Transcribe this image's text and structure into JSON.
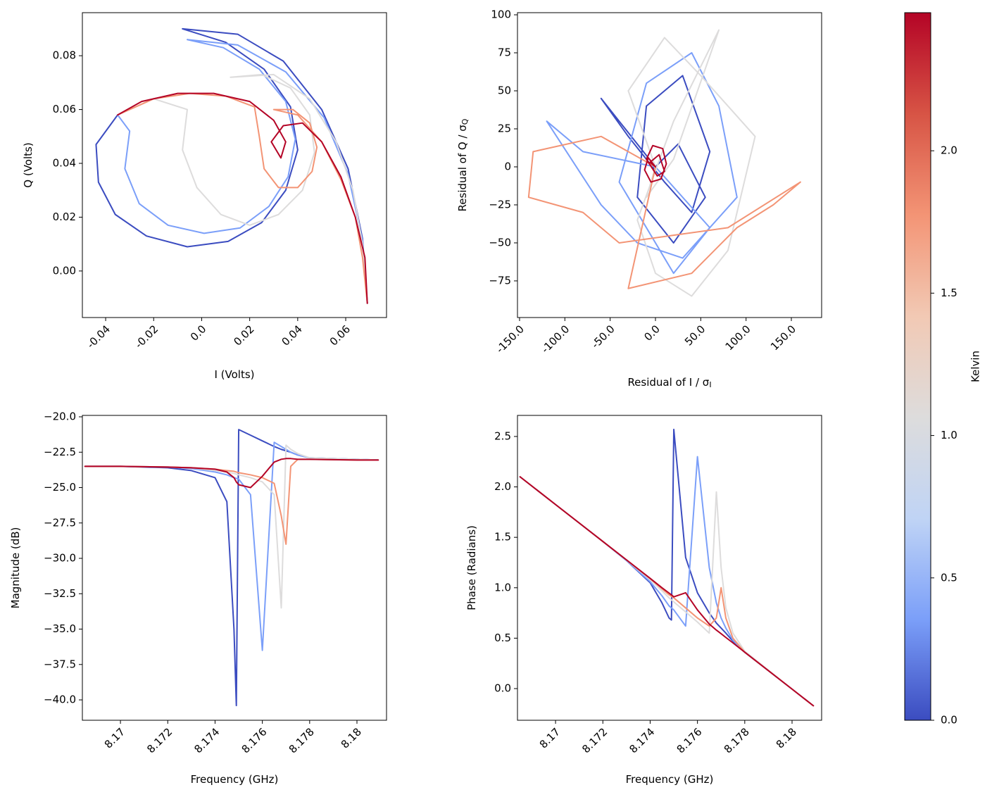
{
  "chart_data": [
    {
      "type": "line",
      "xlabel": "I (Volts)",
      "ylabel": "Q (Volts)",
      "xlim": [
        -0.0497,
        0.077
      ],
      "ylim": [
        -0.0173,
        0.096
      ],
      "xticks": [
        -0.04,
        -0.02,
        {
          "value": 0,
          "label": "0.0"
        },
        0.02,
        0.04,
        0.06
      ],
      "yticks": [
        {
          "value": 0,
          "label": "0.00"
        },
        0.02,
        0.04,
        0.06,
        0.08
      ],
      "series": [
        {
          "color": "#3b4cc0",
          "x": [
            -0.035,
            -0.044,
            -0.043,
            -0.036,
            -0.023,
            -0.006,
            0.011,
            0.025,
            0.035,
            0.04,
            0.037,
            0.026,
            0.01,
            -0.008,
            0.015,
            0.034,
            0.05,
            0.061,
            0.067,
            0.069
          ],
          "values": [
            0.058,
            0.047,
            0.033,
            0.021,
            0.013,
            0.009,
            0.011,
            0.018,
            0.03,
            0.045,
            0.061,
            0.075,
            0.085,
            0.09,
            0.088,
            0.078,
            0.06,
            0.038,
            0.012,
            -0.012
          ]
        },
        {
          "color": "#7b9ff9",
          "x": [
            -0.035,
            -0.03,
            -0.032,
            -0.026,
            -0.014,
            0.001,
            0.016,
            0.028,
            0.036,
            0.039,
            0.035,
            0.024,
            0.009,
            -0.006,
            0.015,
            0.035,
            0.051,
            0.061,
            0.067,
            0.069
          ],
          "values": [
            0.058,
            0.052,
            0.038,
            0.025,
            0.017,
            0.014,
            0.016,
            0.024,
            0.035,
            0.049,
            0.063,
            0.075,
            0.083,
            0.086,
            0.084,
            0.074,
            0.057,
            0.036,
            0.011,
            -0.012
          ]
        },
        {
          "color": "#dddcdc",
          "x": [
            -0.035,
            -0.02,
            -0.006,
            -0.008,
            -0.002,
            0.008,
            0.02,
            0.032,
            0.042,
            0.047,
            0.045,
            0.037,
            0.025,
            0.012,
            0.03,
            0.045,
            0.056,
            0.063,
            0.067,
            0.069
          ],
          "values": [
            0.058,
            0.064,
            0.06,
            0.045,
            0.031,
            0.021,
            0.017,
            0.021,
            0.03,
            0.044,
            0.058,
            0.068,
            0.073,
            0.072,
            0.073,
            0.064,
            0.048,
            0.03,
            0.01,
            -0.012
          ]
        },
        {
          "color": "#f39475",
          "x": [
            -0.035,
            -0.02,
            -0.005,
            0.01,
            0.022,
            0.024,
            0.026,
            0.032,
            0.04,
            0.046,
            0.048,
            0.045,
            0.038,
            0.03,
            0.04,
            0.05,
            0.058,
            0.064,
            0.067,
            0.069
          ],
          "values": [
            0.058,
            0.064,
            0.066,
            0.065,
            0.061,
            0.05,
            0.038,
            0.031,
            0.031,
            0.037,
            0.046,
            0.055,
            0.06,
            0.06,
            0.058,
            0.048,
            0.034,
            0.02,
            0.005,
            -0.012
          ]
        },
        {
          "color": "#b40426",
          "x": [
            -0.035,
            -0.025,
            -0.01,
            0.005,
            0.02,
            0.03,
            0.035,
            0.033,
            0.029,
            0.034,
            0.042,
            0.05,
            0.058,
            0.064,
            0.068,
            0.069
          ],
          "values": [
            0.058,
            0.063,
            0.066,
            0.066,
            0.063,
            0.056,
            0.048,
            0.042,
            0.048,
            0.054,
            0.055,
            0.048,
            0.035,
            0.02,
            0.005,
            -0.012
          ]
        }
      ]
    },
    {
      "type": "line",
      "xlabel": "Residual of I / σ",
      "xlabel_subscript": "I",
      "ylabel": "Residual of Q / σ",
      "ylabel_subscript": "Q",
      "xlim": [
        -152.3,
        183.4
      ],
      "ylim": [
        -99.1,
        101.4
      ],
      "xticks": [
        {
          "value": -150,
          "label": "-150.0"
        },
        {
          "value": -100,
          "label": "-100.0"
        },
        {
          "value": -50,
          "label": "-50.0"
        },
        {
          "value": 0,
          "label": "0.0"
        },
        {
          "value": 50,
          "label": "50.0"
        },
        {
          "value": 100,
          "label": "100.0"
        },
        {
          "value": 150,
          "label": "150.0"
        }
      ],
      "yticks": [
        {
          "value": -75,
          "label": "−75"
        },
        {
          "value": -50,
          "label": "−50"
        },
        {
          "value": -25,
          "label": "−25"
        },
        0,
        25,
        50,
        75,
        100
      ],
      "series": [
        {
          "color": "#3b4cc0",
          "x": [
            0,
            -40,
            -60,
            -30,
            10,
            40,
            60,
            30,
            -10,
            -20,
            20,
            55,
            25,
            0
          ],
          "values": [
            0,
            30,
            45,
            20,
            -10,
            -30,
            10,
            60,
            40,
            -20,
            -50,
            -20,
            15,
            0
          ]
        },
        {
          "color": "#7b9ff9",
          "x": [
            0,
            -80,
            -120,
            -60,
            -20,
            30,
            90,
            70,
            40,
            -10,
            -40,
            20,
            60,
            0
          ],
          "values": [
            0,
            10,
            30,
            -25,
            -50,
            -60,
            -20,
            40,
            75,
            55,
            -10,
            -70,
            -40,
            0
          ]
        },
        {
          "color": "#dddcdc",
          "x": [
            0,
            -30,
            10,
            50,
            110,
            80,
            40,
            0,
            -20,
            20,
            70,
            20,
            -10,
            0
          ],
          "values": [
            0,
            50,
            85,
            60,
            20,
            -55,
            -85,
            -70,
            -35,
            30,
            90,
            5,
            -20,
            0
          ]
        },
        {
          "color": "#f39475",
          "x": [
            0,
            -60,
            -135,
            -140,
            -80,
            -40,
            20,
            80,
            160,
            130,
            90,
            40,
            -30,
            0
          ],
          "values": [
            0,
            20,
            10,
            -20,
            -30,
            -50,
            -45,
            -40,
            -10,
            -25,
            -40,
            -70,
            -80,
            0
          ]
        },
        {
          "color": "#b40426",
          "x": [
            0,
            -8,
            -12,
            -5,
            6,
            12,
            8,
            -3,
            -10,
            2,
            10,
            4,
            -6,
            0
          ],
          "values": [
            0,
            6,
            -2,
            -10,
            -8,
            2,
            12,
            14,
            5,
            -6,
            -3,
            8,
            3,
            0
          ]
        }
      ]
    },
    {
      "type": "line",
      "xlabel": "Frequency (GHz)",
      "ylabel": "Magnitude (dB)",
      "xlim": [
        8.16839,
        8.18125
      ],
      "ylim": [
        -41.44,
        -19.9
      ],
      "xticks": [
        8.17,
        8.172,
        8.174,
        8.176,
        8.178,
        8.18
      ],
      "yticks": [
        {
          "value": -40,
          "label": "−40.0"
        },
        {
          "value": -37.5,
          "label": "−37.5"
        },
        {
          "value": -35,
          "label": "−35.0"
        },
        {
          "value": -32.5,
          "label": "−32.5"
        },
        {
          "value": -30,
          "label": "−30.0"
        },
        {
          "value": -27.5,
          "label": "−27.5"
        },
        {
          "value": -25,
          "label": "−25.0"
        },
        {
          "value": -22.5,
          "label": "−22.5"
        },
        {
          "value": -20,
          "label": "−20.0"
        }
      ],
      "x": [
        8.1685,
        8.17,
        8.172,
        8.173,
        8.174,
        8.1745,
        8.1748,
        8.1749,
        8.175,
        8.1755,
        8.176,
        8.1765,
        8.1768,
        8.177,
        8.1772,
        8.1775,
        8.178,
        8.18,
        8.1809
      ],
      "series": [
        {
          "color": "#3b4cc0",
          "values": [
            -23.5,
            -23.5,
            -23.6,
            -23.8,
            -24.3,
            -26.0,
            -35.0,
            -40.4,
            -20.9,
            -21.3,
            -21.7,
            -22.1,
            -22.3,
            -22.4,
            -22.5,
            -22.7,
            -22.9,
            -23.0,
            -23.05
          ]
        },
        {
          "color": "#7b9ff9",
          "values": [
            -23.5,
            -23.5,
            -23.55,
            -23.65,
            -23.9,
            -24.1,
            -24.3,
            -24.35,
            -24.4,
            -25.5,
            -36.5,
            -21.8,
            -22.1,
            -22.3,
            -22.5,
            -22.7,
            -22.9,
            -23.0,
            -23.05
          ]
        },
        {
          "color": "#dddcdc",
          "values": [
            -23.5,
            -23.5,
            -23.55,
            -23.6,
            -23.8,
            -23.9,
            -24.0,
            -24.05,
            -24.1,
            -24.3,
            -24.6,
            -25.5,
            -33.5,
            -22.0,
            -22.3,
            -22.6,
            -22.9,
            -23.0,
            -23.05
          ]
        },
        {
          "color": "#f39475",
          "values": [
            -23.5,
            -23.5,
            -23.55,
            -23.6,
            -23.7,
            -23.8,
            -23.85,
            -23.9,
            -23.95,
            -24.1,
            -24.3,
            -24.7,
            -27.0,
            -29.0,
            -23.5,
            -23.0,
            -23.0,
            -23.05,
            -23.05
          ]
        },
        {
          "color": "#b40426",
          "values": [
            -23.5,
            -23.5,
            -23.55,
            -23.6,
            -23.7,
            -23.9,
            -24.3,
            -24.6,
            -24.8,
            -25.0,
            -24.2,
            -23.2,
            -23.0,
            -22.95,
            -22.95,
            -23.0,
            -23.0,
            -23.05,
            -23.05
          ]
        }
      ]
    },
    {
      "type": "line",
      "xlabel": "Frequency (GHz)",
      "ylabel": "Phase (Radians)",
      "xlim": [
        8.16839,
        8.18125
      ],
      "ylim": [
        -0.314,
        2.709
      ],
      "xticks": [
        8.17,
        8.172,
        8.174,
        8.176,
        8.178,
        8.18
      ],
      "yticks": [
        {
          "value": 0,
          "label": "0.0"
        },
        0.5,
        {
          "value": 1,
          "label": "1.0"
        },
        1.5,
        {
          "value": 2,
          "label": "2.0"
        },
        2.5
      ],
      "x": [
        8.1685,
        8.17,
        8.172,
        8.173,
        8.174,
        8.1745,
        8.1748,
        8.1749,
        8.175,
        8.1755,
        8.176,
        8.1765,
        8.1768,
        8.177,
        8.1772,
        8.1775,
        8.178,
        8.18,
        8.1809
      ],
      "series": [
        {
          "color": "#3b4cc0",
          "values": [
            2.1,
            1.825,
            1.459,
            1.27,
            1.05,
            0.85,
            0.7,
            0.68,
            2.57,
            1.3,
            0.95,
            0.75,
            0.65,
            0.6,
            0.55,
            0.47,
            0.36,
            -0.005,
            -0.17
          ]
        },
        {
          "color": "#7b9ff9",
          "values": [
            2.1,
            1.825,
            1.459,
            1.27,
            1.06,
            0.92,
            0.82,
            0.8,
            0.78,
            0.62,
            2.3,
            1.2,
            0.85,
            0.7,
            0.6,
            0.48,
            0.36,
            -0.005,
            -0.17
          ]
        },
        {
          "color": "#dddcdc",
          "values": [
            2.1,
            1.825,
            1.459,
            1.275,
            1.08,
            0.97,
            0.9,
            0.88,
            0.86,
            0.76,
            0.66,
            0.55,
            1.95,
            1.2,
            0.8,
            0.55,
            0.37,
            -0.005,
            -0.17
          ]
        },
        {
          "color": "#f39475",
          "values": [
            2.1,
            1.825,
            1.459,
            1.276,
            1.09,
            0.99,
            0.93,
            0.915,
            0.9,
            0.8,
            0.7,
            0.62,
            0.7,
            1.0,
            0.7,
            0.5,
            0.36,
            -0.005,
            -0.17
          ]
        },
        {
          "color": "#b40426",
          "values": [
            2.1,
            1.825,
            1.459,
            1.276,
            1.093,
            1.0,
            0.947,
            0.929,
            0.91,
            0.95,
            0.78,
            0.64,
            0.58,
            0.544,
            0.507,
            0.453,
            0.361,
            -0.005,
            -0.17
          ]
        }
      ]
    }
  ],
  "colorbar": {
    "label": "Kelvin",
    "lim": [
      0,
      2.485
    ],
    "ticks": [
      {
        "value": 0,
        "label": "0.0"
      },
      0.5,
      {
        "value": 1,
        "label": "1.0"
      },
      1.5,
      {
        "value": 2,
        "label": "2.0"
      }
    ],
    "colors": [
      "#3b4cc0",
      "#7b9ff9",
      "#c0d4f5",
      "#dddcdc",
      "#f2c9b4",
      "#f39475",
      "#d75445",
      "#b40426"
    ]
  }
}
